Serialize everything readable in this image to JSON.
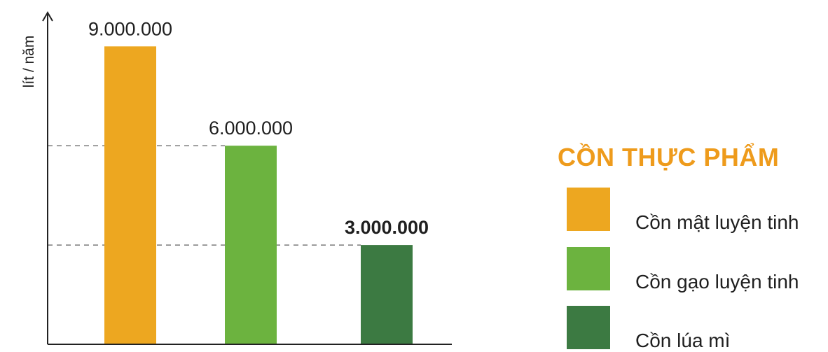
{
  "chart_data": {
    "type": "bar",
    "title": "",
    "xlabel": "",
    "ylabel": "lít / năm",
    "categories": [
      "Cồn mật luyện tinh",
      "Cồn gạo luyện tinh",
      "Cồn lúa mì"
    ],
    "values": [
      9000000,
      6000000,
      3000000
    ],
    "value_labels": [
      "9.000.000",
      "6.000.000",
      "3.000.000"
    ],
    "colors": [
      "#EDA720",
      "#6CB33F",
      "#3C7A42"
    ],
    "ylim": [
      0,
      10000000
    ],
    "reference_lines": [
      6000000,
      3000000
    ],
    "legend_title": "CỒN THỰC PHẨM",
    "legend_position": "right",
    "grid": false
  },
  "legend": {
    "title": "CỒN THỰC PHẨM",
    "title_color": "#EE9B1C",
    "items": [
      {
        "label": "Cồn mật luyện tinh",
        "color": "#EDA720"
      },
      {
        "label": "Cồn gạo luyện tinh",
        "color": "#6CB33F"
      },
      {
        "label": "Cồn lúa mì",
        "color": "#3C7A42"
      }
    ]
  }
}
